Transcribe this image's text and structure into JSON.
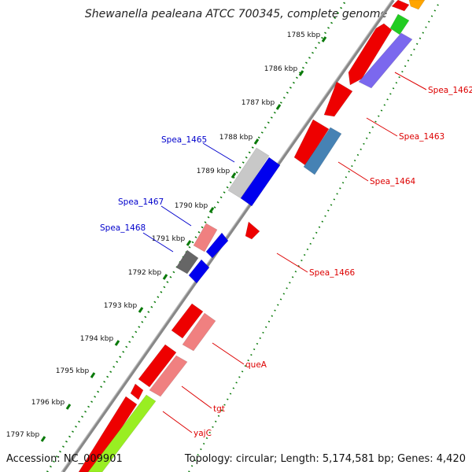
{
  "title": "Shewanella pealeana ATCC 700345, complete genome",
  "footer": {
    "accession": "Accession: NC_009901",
    "stats": "Topology: circular; Length: 5,174,581 bp; Genes: 4,420"
  },
  "ticks": [
    {
      "label": "1785 kbp"
    },
    {
      "label": "1786 kbp"
    },
    {
      "label": "1787 kbp"
    },
    {
      "label": "1788 kbp"
    },
    {
      "label": "1789 kbp"
    },
    {
      "label": "1790 kbp"
    },
    {
      "label": "1791 kbp"
    },
    {
      "label": "1792 kbp"
    },
    {
      "label": "1793 kbp"
    },
    {
      "label": "1794 kbp"
    },
    {
      "label": "1795 kbp"
    },
    {
      "label": "1796 kbp"
    },
    {
      "label": "1797 kbp"
    }
  ],
  "gene_labels": [
    {
      "text": "Spea_1462",
      "color": "#dd0000"
    },
    {
      "text": "Spea_1463",
      "color": "#dd0000"
    },
    {
      "text": "Spea_1464",
      "color": "#dd0000"
    },
    {
      "text": "Spea_1465",
      "color": "#0000cc"
    },
    {
      "text": "Spea_1466",
      "color": "#dd0000"
    },
    {
      "text": "Spea_1467",
      "color": "#0000cc"
    },
    {
      "text": "Spea_1468",
      "color": "#0000cc"
    },
    {
      "text": "queA",
      "color": "#dd0000"
    },
    {
      "text": "tgt",
      "color": "#dd0000"
    },
    {
      "text": "yajC",
      "color": "#dd0000"
    }
  ],
  "colors": {
    "backbone": "#888888",
    "tick_dots": "#0a7a0a",
    "forward_cds": "#ee0000",
    "reverse_cds": "#0000ee"
  }
}
